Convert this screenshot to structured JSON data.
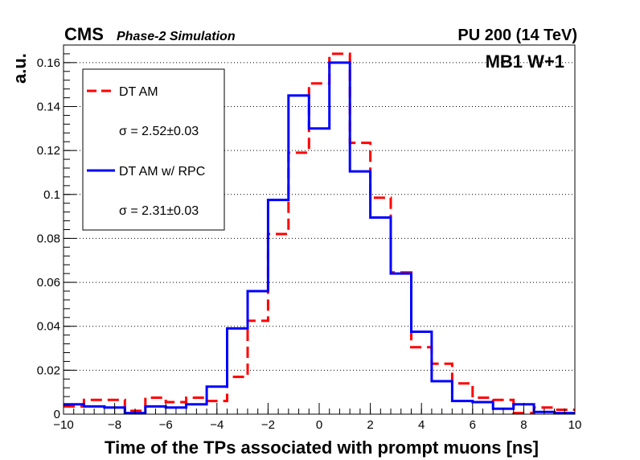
{
  "header": {
    "experiment": "CMS",
    "subtitle": "Phase-2 Simulation",
    "conditions": "PU 200 (14 TeV)",
    "region": "MB1 W+1"
  },
  "chart_data": {
    "type": "line",
    "style": "step histogram",
    "xlabel": "Time of the TPs associated with prompt muons [ns]",
    "ylabel": "a.u.",
    "xlim": [
      -10,
      10
    ],
    "ylim": [
      0,
      0.168
    ],
    "x_ticks": [
      "−10",
      "−8",
      "−6",
      "−4",
      "−2",
      "0",
      "2",
      "4",
      "6",
      "8",
      "10"
    ],
    "y_ticks": [
      "0",
      "0.02",
      "0.04",
      "0.06",
      "0.08",
      "0.1",
      "0.12",
      "0.14",
      "0.16"
    ],
    "grid": "horizontal dotted",
    "legend_position": "top-left",
    "bin_edges": [
      -10,
      -9.2,
      -8.4,
      -7.6,
      -6.8,
      -6.0,
      -5.2,
      -4.4,
      -3.6,
      -2.8,
      -2.0,
      -1.2,
      -0.4,
      0.4,
      1.2,
      2.0,
      2.8,
      3.6,
      4.4,
      5.2,
      6.0,
      6.8,
      7.6,
      8.4,
      9.2,
      10
    ],
    "series": [
      {
        "name": "DT AM",
        "sigma_text": "σ = 2.52±0.03",
        "color": "#ff0000",
        "dashed": true,
        "values": [
          0.0035,
          0.0065,
          0.0065,
          0.0015,
          0.0075,
          0.0055,
          0.0075,
          0.006,
          0.017,
          0.0425,
          0.082,
          0.119,
          0.1505,
          0.164,
          0.1235,
          0.0985,
          0.0645,
          0.0305,
          0.023,
          0.014,
          0.0075,
          0.0065,
          0.0005,
          0.003,
          0.002
        ]
      },
      {
        "name": "DT AM w/ RPC",
        "sigma_text": "σ = 2.31±0.03",
        "color": "#0000ff",
        "dashed": false,
        "values": [
          0.0045,
          0.0035,
          0.003,
          0.0005,
          0.0035,
          0.003,
          0.0045,
          0.0125,
          0.039,
          0.056,
          0.0975,
          0.145,
          0.13,
          0.16,
          0.1105,
          0.0895,
          0.064,
          0.0375,
          0.015,
          0.006,
          0.0055,
          0.0025,
          0.0045,
          0.001,
          0.0005
        ]
      }
    ]
  }
}
